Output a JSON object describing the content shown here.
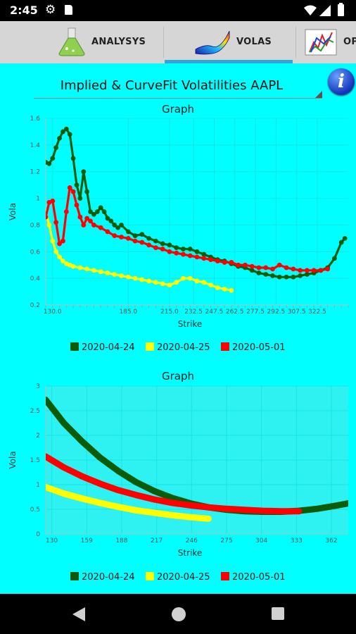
{
  "status_bar": {
    "time": "2:45"
  },
  "tabs": [
    {
      "label": "ANALYSYS",
      "icon": "flask-icon",
      "active": false
    },
    {
      "label": "VOLAS",
      "icon": "surface-icon",
      "active": true
    },
    {
      "label": "OP",
      "icon": "chart-icon",
      "active": false
    }
  ],
  "spinner": {
    "title": "Implied & CurveFit Volatilities AAPL"
  },
  "colors": {
    "s1": "#0a5c0a",
    "s2": "#ffff00",
    "s3": "#ff0000",
    "bg": "#00ffff"
  },
  "chart_data": [
    {
      "type": "line",
      "title": "Graph",
      "xlabel": "Strike",
      "ylabel": "Vola",
      "xlim": [
        125,
        345
      ],
      "ylim": [
        0.2,
        1.6
      ],
      "yticks": [
        0.2,
        0.4,
        0.6,
        0.8,
        1,
        1.2,
        1.4,
        1.6
      ],
      "ytick_labels": [
        "0.2",
        "0.4",
        "0.6",
        "0.8",
        "1",
        "1.2",
        "1.4",
        "1.6"
      ],
      "xticks": [
        130,
        185,
        215,
        232.5,
        247.5,
        262.5,
        277.5,
        292.5,
        307.5,
        322.5
      ],
      "xtick_labels": [
        "130.0",
        "185.0",
        "215.0",
        "232.5",
        "247.5",
        "262.5",
        "277.5",
        "292.5",
        "307.5",
        "322.5"
      ],
      "legend": "bottom",
      "series": [
        {
          "name": "2020-04-24",
          "color": "#0a5c0a",
          "markers": true,
          "x": [
            125,
            127.5,
            130,
            132.5,
            135,
            137.5,
            140,
            142.5,
            145,
            147.5,
            150,
            152.5,
            155,
            157.5,
            160,
            162.5,
            165,
            167.5,
            170,
            172.5,
            175,
            177.5,
            180,
            185,
            190,
            195,
            200,
            205,
            210,
            215,
            220,
            225,
            230,
            235,
            240,
            245,
            250,
            255,
            260,
            265,
            270,
            275,
            280,
            285,
            290,
            295,
            300,
            305,
            310,
            315,
            320,
            325,
            330,
            335,
            340,
            342.5
          ],
          "y": [
            1.27,
            1.26,
            1.3,
            1.38,
            1.45,
            1.5,
            1.52,
            1.48,
            1.3,
            1.1,
            1.0,
            1.2,
            1.05,
            0.9,
            0.88,
            0.9,
            0.93,
            0.9,
            0.85,
            0.83,
            0.8,
            0.78,
            0.8,
            0.75,
            0.72,
            0.73,
            0.7,
            0.68,
            0.66,
            0.65,
            0.63,
            0.62,
            0.62,
            0.6,
            0.58,
            0.56,
            0.54,
            0.53,
            0.51,
            0.49,
            0.48,
            0.46,
            0.44,
            0.43,
            0.42,
            0.41,
            0.41,
            0.41,
            0.42,
            0.43,
            0.44,
            0.46,
            0.48,
            0.55,
            0.67,
            0.7
          ]
        },
        {
          "name": "2020-04-25",
          "color": "#ffff00",
          "markers": true,
          "x": [
            125,
            127.5,
            130,
            132.5,
            135,
            137.5,
            140,
            142.5,
            145,
            150,
            155,
            160,
            165,
            170,
            175,
            180,
            185,
            190,
            195,
            200,
            205,
            210,
            215,
            220,
            225,
            230,
            235,
            240,
            245,
            250,
            255,
            260
          ],
          "y": [
            0.9,
            0.8,
            0.68,
            0.6,
            0.56,
            0.53,
            0.51,
            0.5,
            0.49,
            0.48,
            0.47,
            0.46,
            0.45,
            0.44,
            0.43,
            0.42,
            0.41,
            0.4,
            0.39,
            0.38,
            0.37,
            0.36,
            0.35,
            0.37,
            0.4,
            0.4,
            0.38,
            0.37,
            0.35,
            0.33,
            0.32,
            0.31
          ]
        },
        {
          "name": "2020-05-01",
          "color": "#ff0000",
          "markers": true,
          "x": [
            125,
            127.5,
            130,
            132.5,
            135,
            137.5,
            140,
            142.5,
            145,
            147.5,
            150,
            152.5,
            155,
            157.5,
            160,
            165,
            170,
            175,
            180,
            185,
            190,
            195,
            200,
            205,
            210,
            215,
            220,
            225,
            230,
            235,
            240,
            245,
            250,
            255,
            260,
            265,
            270,
            275,
            280,
            285,
            290,
            295,
            300,
            305,
            310,
            315,
            320,
            325,
            330
          ],
          "y": [
            0.86,
            0.97,
            0.98,
            0.82,
            0.66,
            0.68,
            0.9,
            1.08,
            1.05,
            0.95,
            0.86,
            0.8,
            0.85,
            0.83,
            0.8,
            0.78,
            0.75,
            0.72,
            0.71,
            0.7,
            0.68,
            0.67,
            0.65,
            0.63,
            0.62,
            0.6,
            0.59,
            0.58,
            0.57,
            0.56,
            0.55,
            0.54,
            0.53,
            0.52,
            0.52,
            0.5,
            0.5,
            0.49,
            0.48,
            0.48,
            0.47,
            0.5,
            0.48,
            0.47,
            0.46,
            0.46,
            0.46,
            0.46,
            0.47
          ]
        }
      ]
    },
    {
      "type": "line",
      "title": "Graph",
      "xlabel": "Strike",
      "ylabel": "Vola",
      "xlim": [
        125,
        376
      ],
      "ylim": [
        0,
        3
      ],
      "yticks": [
        0,
        0.5,
        1,
        1.5,
        2,
        2.5,
        3
      ],
      "ytick_labels": [
        "0",
        "0.5",
        "1",
        "1.5",
        "2",
        "2.5",
        "3"
      ],
      "xticks": [
        130,
        159,
        188,
        217,
        246,
        275,
        304,
        333,
        362
      ],
      "xtick_labels": [
        "130",
        "159",
        "188",
        "217",
        "246",
        "275",
        "304",
        "333",
        "362"
      ],
      "legend": "bottom",
      "series": [
        {
          "name": "2020-04-24",
          "color": "#0a5c0a",
          "markers": false,
          "x": [
            125,
            140,
            155,
            170,
            185,
            200,
            215,
            230,
            245,
            260,
            275,
            290,
            305,
            320,
            335,
            350,
            365,
            376
          ],
          "y": [
            2.72,
            2.25,
            1.88,
            1.55,
            1.28,
            1.05,
            0.87,
            0.73,
            0.62,
            0.54,
            0.49,
            0.46,
            0.45,
            0.45,
            0.47,
            0.51,
            0.57,
            0.62
          ]
        },
        {
          "name": "2020-04-25",
          "color": "#ffff00",
          "markers": false,
          "x": [
            125,
            140,
            155,
            170,
            185,
            200,
            215,
            230,
            245,
            260
          ],
          "y": [
            0.95,
            0.82,
            0.72,
            0.63,
            0.55,
            0.48,
            0.43,
            0.38,
            0.34,
            0.31
          ]
        },
        {
          "name": "2020-05-01",
          "color": "#ff0000",
          "markers": false,
          "x": [
            125,
            140,
            155,
            170,
            185,
            200,
            215,
            230,
            245,
            260,
            275,
            290,
            305,
            320,
            335
          ],
          "y": [
            1.57,
            1.35,
            1.17,
            1.02,
            0.89,
            0.79,
            0.7,
            0.63,
            0.58,
            0.54,
            0.51,
            0.49,
            0.47,
            0.46,
            0.46
          ]
        }
      ]
    }
  ]
}
